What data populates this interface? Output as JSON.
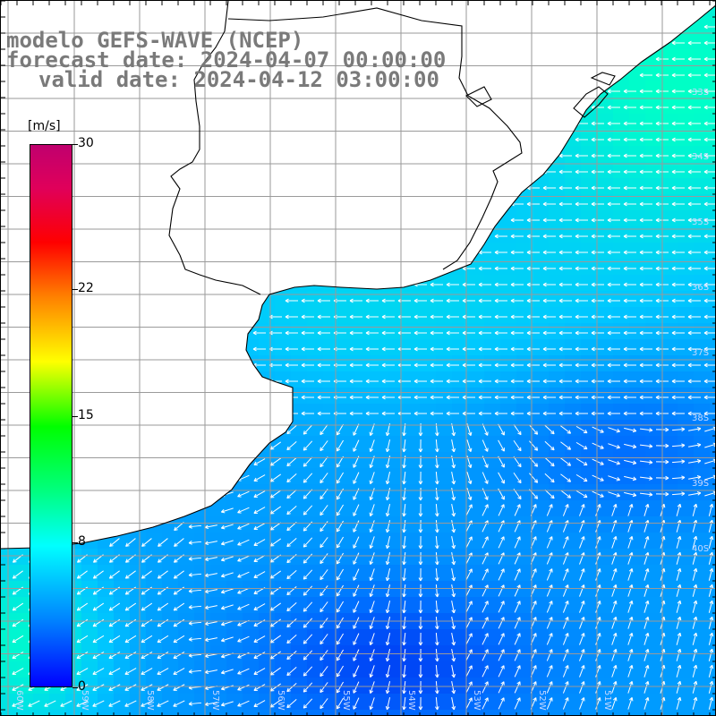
{
  "titles": {
    "line1": "modelo GEFS-WAVE (NCEP)",
    "line2": "forecast date: 2024-04-07 00:00:00",
    "line3": "valid date: 2024-04-12 03:00:00"
  },
  "colorbar": {
    "unit": "[m/s]",
    "ticks": [
      {
        "label": "30",
        "value": 30
      },
      {
        "label": "22",
        "value": 22
      },
      {
        "label": "15",
        "value": 15
      },
      {
        "label": "8",
        "value": 8
      },
      {
        "label": "0",
        "value": 0
      }
    ]
  },
  "latitude_labels": [
    "33S",
    "34S",
    "35S",
    "36S",
    "37S",
    "38S",
    "39S",
    "40S"
  ],
  "longitude_labels": [
    "60W",
    "59W",
    "58W",
    "57W",
    "56W",
    "55W",
    "54W",
    "53W",
    "52W",
    "51W"
  ],
  "colors": {
    "land": "#ffffff",
    "coast": "#000000",
    "grid": "#9a9a9a",
    "arrow": "#ffffff",
    "title_text": "#7a7a7a"
  }
}
